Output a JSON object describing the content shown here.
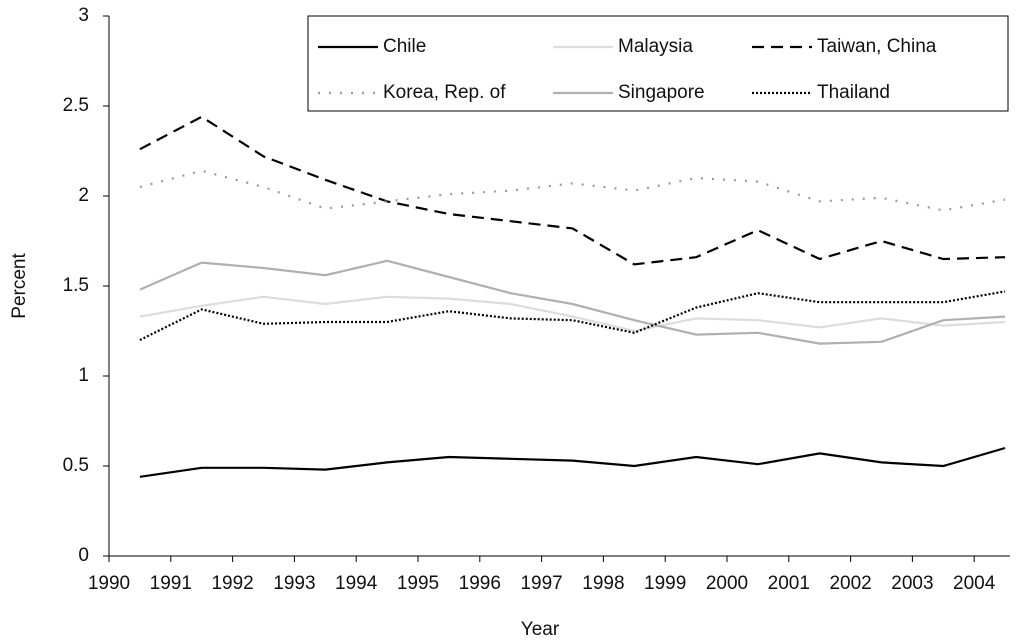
{
  "chart_data": {
    "type": "line",
    "x_label": "Year",
    "y_label": "Percent",
    "categories": [
      "1990",
      "1991",
      "1992",
      "1993",
      "1994",
      "1995",
      "1996",
      "1997",
      "1998",
      "1999",
      "2000",
      "2001",
      "2002",
      "2003",
      "2004"
    ],
    "ylim": [
      0,
      3
    ],
    "yticks": [
      0,
      0.5,
      1,
      1.5,
      2,
      2.5,
      3
    ],
    "grid": false,
    "legend": "top-right",
    "series": [
      {
        "name": "Chile",
        "color": "#000000",
        "style": "solid",
        "values": [
          0.44,
          0.49,
          0.49,
          0.48,
          0.52,
          0.55,
          0.54,
          0.53,
          0.5,
          0.55,
          0.51,
          0.57,
          0.52,
          0.5,
          0.6
        ]
      },
      {
        "name": "Malaysia",
        "color": "#dcdcdc",
        "style": "solid",
        "values": [
          1.33,
          1.39,
          1.44,
          1.4,
          1.44,
          1.43,
          1.4,
          1.33,
          1.25,
          1.32,
          1.31,
          1.27,
          1.32,
          1.28,
          1.3
        ]
      },
      {
        "name": "Taiwan, China",
        "color": "#000000",
        "style": "dashed",
        "values": [
          2.26,
          2.44,
          2.22,
          2.09,
          1.97,
          1.9,
          1.86,
          1.82,
          1.62,
          1.66,
          1.81,
          1.65,
          1.75,
          1.65,
          1.66
        ]
      },
      {
        "name": "Korea, Rep. of",
        "color": "#999999",
        "style": "dotted",
        "values": [
          2.05,
          2.14,
          2.05,
          1.93,
          1.97,
          2.01,
          2.03,
          2.07,
          2.03,
          2.1,
          2.08,
          1.97,
          1.99,
          1.92,
          1.98
        ]
      },
      {
        "name": "Singapore",
        "color": "#b0b0b0",
        "style": "solid",
        "values": [
          1.48,
          1.63,
          1.6,
          1.56,
          1.64,
          1.55,
          1.46,
          1.4,
          1.31,
          1.23,
          1.24,
          1.18,
          1.19,
          1.31,
          1.33
        ]
      },
      {
        "name": "Thailand",
        "color": "#000000",
        "style": "fine-dotted",
        "values": [
          1.2,
          1.37,
          1.29,
          1.3,
          1.3,
          1.36,
          1.32,
          1.31,
          1.24,
          1.38,
          1.46,
          1.41,
          1.41,
          1.41,
          1.47
        ]
      }
    ]
  }
}
